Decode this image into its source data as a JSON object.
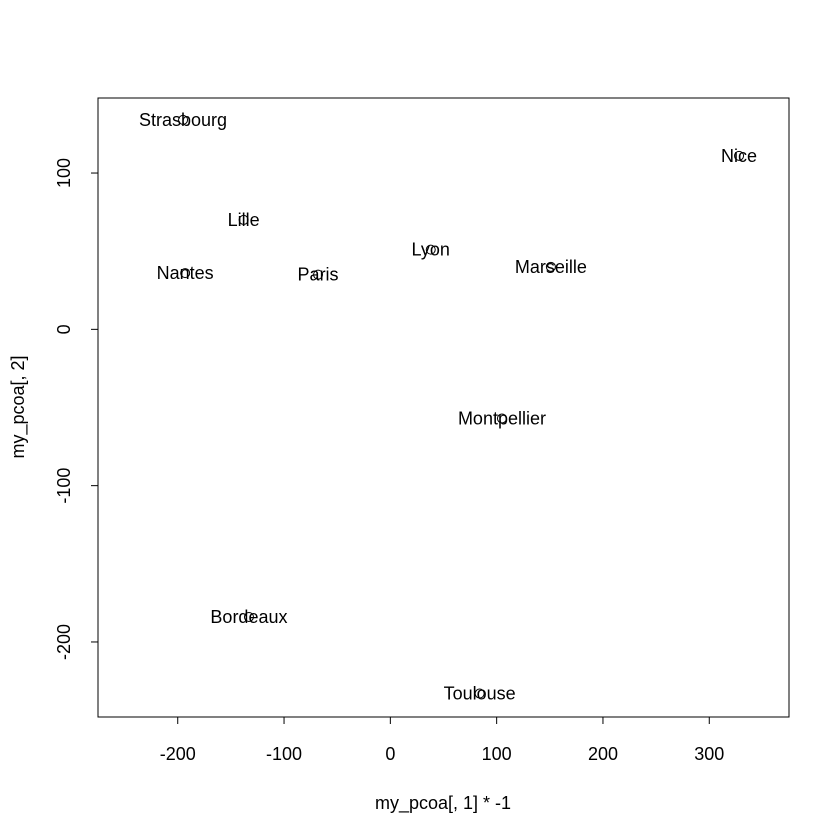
{
  "chart_data": {
    "type": "scatter",
    "title": "",
    "xlabel": "my_pcoa[, 1] * -1",
    "ylabel": "my_pcoa[, 2]",
    "xlim": [
      -275,
      375
    ],
    "ylim": [
      -248,
      148
    ],
    "x_ticks": [
      -200,
      -100,
      0,
      100,
      200,
      300
    ],
    "y_ticks": [
      -200,
      -100,
      0,
      100
    ],
    "grid": false,
    "points": [
      {
        "label": "Strasbourg",
        "x": -195,
        "y": 134
      },
      {
        "label": "Nice",
        "x": 328,
        "y": 111
      },
      {
        "label": "Lille",
        "x": -138,
        "y": 70
      },
      {
        "label": "Lyon",
        "x": 38,
        "y": 51
      },
      {
        "label": "Marseille",
        "x": 151,
        "y": 40
      },
      {
        "label": "Nantes",
        "x": -193,
        "y": 36
      },
      {
        "label": "Paris",
        "x": -68,
        "y": 35
      },
      {
        "label": "Montpellier",
        "x": 105,
        "y": -57
      },
      {
        "label": "Bordeaux",
        "x": -133,
        "y": -184
      },
      {
        "label": "Toulouse",
        "x": 84,
        "y": -233
      }
    ]
  }
}
